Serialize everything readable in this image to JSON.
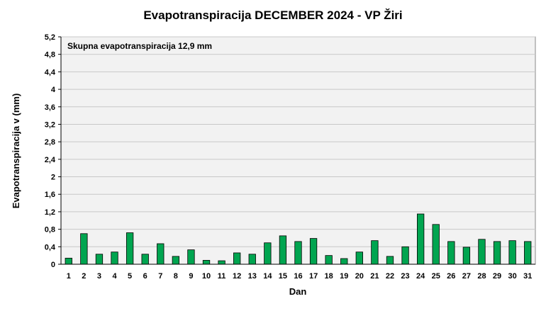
{
  "chart_data": {
    "type": "bar",
    "title": "Evapotranspiracija  DECEMBER 2024 - VP Žiri",
    "xlabel": "Dan",
    "ylabel": "Evapotranspiracija v  (mm)",
    "annotation": "Skupna evapotranspiracija  12,9 mm",
    "categories": [
      "1",
      "2",
      "3",
      "4",
      "5",
      "6",
      "7",
      "8",
      "9",
      "10",
      "11",
      "12",
      "13",
      "14",
      "15",
      "16",
      "17",
      "18",
      "19",
      "20",
      "21",
      "22",
      "23",
      "24",
      "25",
      "26",
      "27",
      "28",
      "29",
      "30",
      "31"
    ],
    "values": [
      0.14,
      0.7,
      0.23,
      0.28,
      0.72,
      0.23,
      0.47,
      0.18,
      0.33,
      0.09,
      0.08,
      0.26,
      0.23,
      0.49,
      0.65,
      0.52,
      0.59,
      0.2,
      0.13,
      0.28,
      0.54,
      0.18,
      0.4,
      1.15,
      0.91,
      0.52,
      0.39,
      0.57,
      0.52,
      0.54,
      0.52
    ],
    "ylim": [
      0,
      5.2
    ],
    "yticks": [
      "0",
      "0,4",
      "0,8",
      "1,2",
      "1,6",
      "2",
      "2,4",
      "2,8",
      "3,2",
      "3,6",
      "4",
      "4,4",
      "4,8",
      "5,2"
    ],
    "grid": true,
    "legend": "none",
    "colors": {
      "bar_fill": "#00a550",
      "bar_stroke": "#000000",
      "plot_bg": "#f2f2f2",
      "grid": "#c8c8c8"
    }
  }
}
